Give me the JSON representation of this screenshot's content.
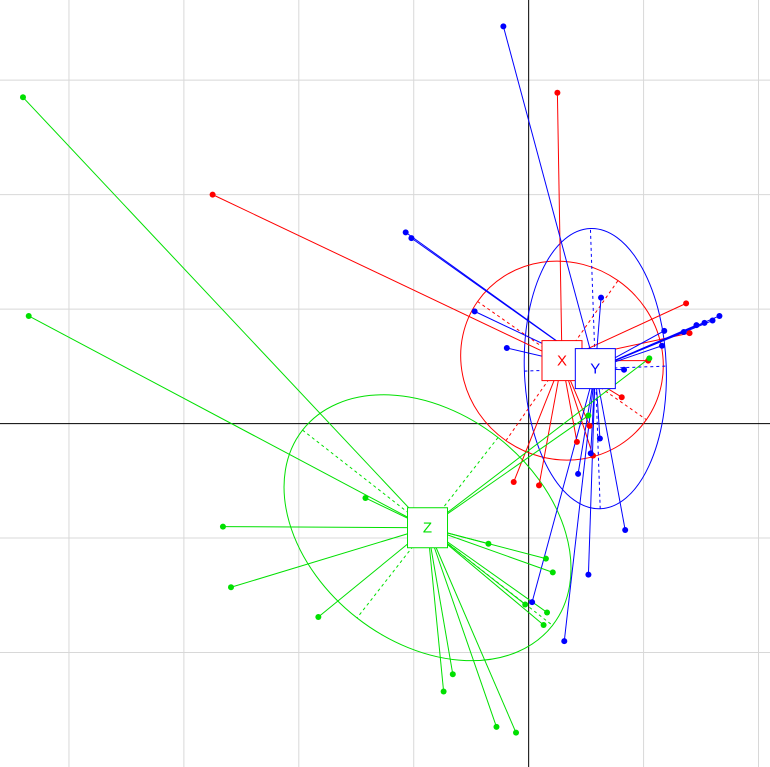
{
  "chart_data": {
    "type": "scatter",
    "title": "",
    "xlabel": "",
    "ylabel": "",
    "xlim": [
      -4.6,
      2.1
    ],
    "ylim": [
      -3.0,
      3.7
    ],
    "x_ticks": [
      -4,
      -3,
      -2,
      -1,
      0,
      1,
      2
    ],
    "y_ticks": [
      -2,
      -1,
      0,
      1,
      2,
      3
    ],
    "grid": true,
    "legend": "none",
    "groups": [
      {
        "name": "X",
        "color": "#ff0000",
        "centroid": [
          0.29,
          0.55
        ],
        "ellipse": {
          "rx": 0.85,
          "ry": 0.9,
          "rotation_deg": -55
        },
        "points": [
          [
            0.25,
            2.89
          ],
          [
            -2.75,
            2.0
          ],
          [
            1.37,
            1.05
          ],
          [
            1.4,
            0.79
          ],
          [
            1.04,
            0.55
          ],
          [
            0.81,
            0.23
          ],
          [
            0.56,
            -0.28
          ],
          [
            0.42,
            -0.16
          ],
          [
            0.09,
            -0.54
          ],
          [
            -0.13,
            -0.51
          ],
          [
            0.53,
            -0.02
          ]
        ]
      },
      {
        "name": "Y",
        "color": "#0000ff",
        "centroid": [
          0.58,
          0.48
        ],
        "ellipse": {
          "rx": 1.22,
          "ry": 0.62,
          "rotation_deg": -92
        },
        "points": [
          [
            -0.22,
            3.47
          ],
          [
            -1.07,
            1.67
          ],
          [
            -1.02,
            1.62
          ],
          [
            -0.47,
            0.98
          ],
          [
            -0.19,
            0.66
          ],
          [
            0.63,
            1.1
          ],
          [
            1.66,
            0.94
          ],
          [
            1.6,
            0.9
          ],
          [
            1.53,
            0.88
          ],
          [
            1.46,
            0.86
          ],
          [
            1.35,
            0.8
          ],
          [
            1.18,
            0.81
          ],
          [
            1.16,
            0.68
          ],
          [
            0.83,
            0.47
          ],
          [
            0.62,
            -0.13
          ],
          [
            0.54,
            -0.26
          ],
          [
            0.43,
            -0.44
          ],
          [
            0.84,
            -0.93
          ],
          [
            0.52,
            -1.32
          ],
          [
            0.31,
            -1.9
          ],
          [
            0.03,
            -1.56
          ]
        ]
      },
      {
        "name": "Z",
        "color": "#00e000",
        "centroid": [
          -0.88,
          -0.91
        ],
        "ellipse": {
          "rx": 1.38,
          "ry": 1.0,
          "rotation_deg": 38
        },
        "points": [
          [
            -4.4,
            2.85
          ],
          [
            -4.35,
            0.94
          ],
          [
            -1.42,
            -0.65
          ],
          [
            -2.66,
            -0.9
          ],
          [
            -2.59,
            -1.43
          ],
          [
            -1.83,
            -1.69
          ],
          [
            -0.35,
            -1.05
          ],
          [
            0.15,
            -1.18
          ],
          [
            0.21,
            -1.3
          ],
          [
            -0.03,
            -1.58
          ],
          [
            0.16,
            -1.65
          ],
          [
            0.13,
            -1.76
          ],
          [
            -0.66,
            -2.19
          ],
          [
            -0.74,
            -2.34
          ],
          [
            -0.28,
            -2.65
          ],
          [
            -0.11,
            -2.7
          ],
          [
            1.05,
            0.57
          ],
          [
            0.52,
            0.07
          ]
        ]
      }
    ]
  }
}
